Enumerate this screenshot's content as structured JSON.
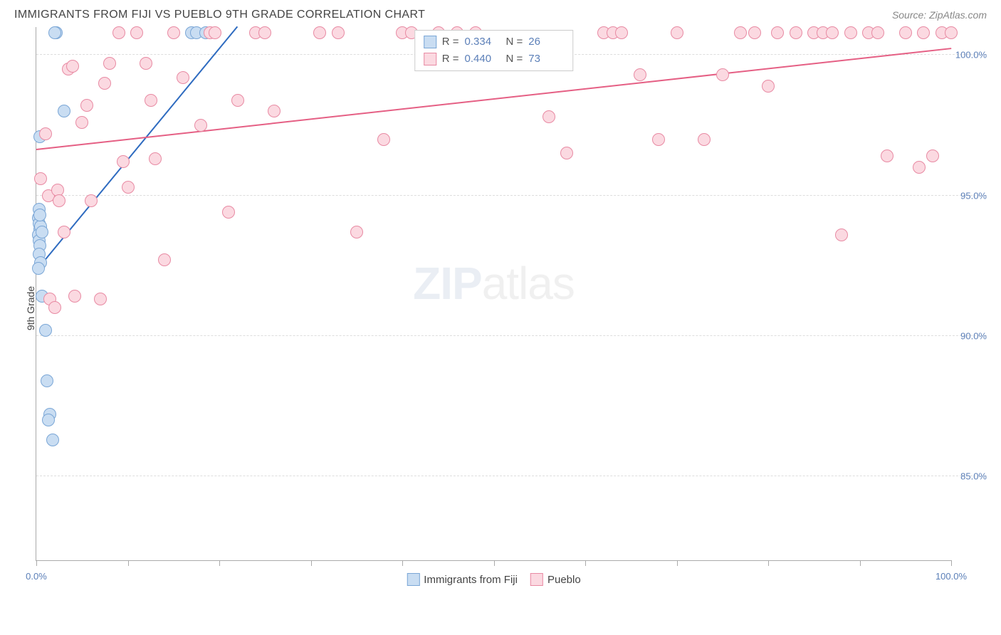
{
  "header": {
    "title": "IMMIGRANTS FROM FIJI VS PUEBLO 9TH GRADE CORRELATION CHART",
    "source": "Source: ZipAtlas.com"
  },
  "chart": {
    "type": "scatter",
    "ylabel": "9th Grade",
    "xlim": [
      0,
      100
    ],
    "ylim": [
      82,
      101
    ],
    "xtick_positions": [
      0,
      10,
      20,
      30,
      40,
      50,
      60,
      70,
      80,
      90,
      100
    ],
    "xtick_labels_shown": {
      "0": "0.0%",
      "100": "100.0%"
    },
    "ytick_positions": [
      85,
      90,
      95,
      100
    ],
    "ytick_labels": [
      "85.0%",
      "90.0%",
      "95.0%",
      "100.0%"
    ],
    "background_color": "#ffffff",
    "grid_color": "#dddddd",
    "grid_style": "dashed",
    "axis_color": "#aaaaaa",
    "tick_label_color": "#5b7fb8",
    "marker_radius": 9,
    "marker_stroke_width": 1.2,
    "series": [
      {
        "name": "Immigrants from Fiji",
        "fill": "#c9ddf2",
        "stroke": "#7aa6d6",
        "R": "0.334",
        "N": "26",
        "trend": {
          "x1": 0,
          "y1": 92.3,
          "x2": 22,
          "y2": 101,
          "color": "#2e6bc0",
          "width": 2
        },
        "points": [
          [
            0.2,
            94.2
          ],
          [
            0.3,
            94.0
          ],
          [
            0.4,
            93.8
          ],
          [
            0.2,
            93.6
          ],
          [
            0.5,
            93.9
          ],
          [
            0.3,
            93.4
          ],
          [
            0.6,
            93.7
          ],
          [
            0.4,
            93.2
          ],
          [
            0.3,
            92.9
          ],
          [
            0.5,
            92.6
          ],
          [
            0.2,
            92.4
          ],
          [
            0.6,
            91.4
          ],
          [
            1.0,
            90.2
          ],
          [
            1.2,
            88.4
          ],
          [
            1.5,
            87.2
          ],
          [
            1.3,
            87.0
          ],
          [
            1.8,
            86.3
          ],
          [
            2.2,
            100.8
          ],
          [
            2.0,
            100.8
          ],
          [
            3.0,
            98.0
          ],
          [
            0.4,
            97.1
          ],
          [
            17.0,
            100.8
          ],
          [
            17.5,
            100.8
          ],
          [
            18.5,
            100.8
          ],
          [
            0.3,
            94.5
          ],
          [
            0.4,
            94.3
          ]
        ]
      },
      {
        "name": "Pueblo",
        "fill": "#fbd9e1",
        "stroke": "#e88aa3",
        "R": "0.440",
        "N": "73",
        "trend": {
          "x1": 0,
          "y1": 96.6,
          "x2": 100,
          "y2": 100.2,
          "color": "#e55f84",
          "width": 2
        },
        "points": [
          [
            0.5,
            95.6
          ],
          [
            1.0,
            97.2
          ],
          [
            1.3,
            95.0
          ],
          [
            1.5,
            91.3
          ],
          [
            2.0,
            91.0
          ],
          [
            2.3,
            95.2
          ],
          [
            2.5,
            94.8
          ],
          [
            3.0,
            93.7
          ],
          [
            3.5,
            99.5
          ],
          [
            4.0,
            99.6
          ],
          [
            4.2,
            91.4
          ],
          [
            5.0,
            97.6
          ],
          [
            5.5,
            98.2
          ],
          [
            6.0,
            94.8
          ],
          [
            7.0,
            91.3
          ],
          [
            7.5,
            99.0
          ],
          [
            8.0,
            99.7
          ],
          [
            9.0,
            100.8
          ],
          [
            9.5,
            96.2
          ],
          [
            10.0,
            95.3
          ],
          [
            11.0,
            100.8
          ],
          [
            12.0,
            99.7
          ],
          [
            12.5,
            98.4
          ],
          [
            13.0,
            96.3
          ],
          [
            14.0,
            92.7
          ],
          [
            15.0,
            100.8
          ],
          [
            16.0,
            99.2
          ],
          [
            18.0,
            97.5
          ],
          [
            19.0,
            100.8
          ],
          [
            19.5,
            100.8
          ],
          [
            21.0,
            94.4
          ],
          [
            22.0,
            98.4
          ],
          [
            24.0,
            100.8
          ],
          [
            25.0,
            100.8
          ],
          [
            26.0,
            98.0
          ],
          [
            31.0,
            100.8
          ],
          [
            33.0,
            100.8
          ],
          [
            35.0,
            93.7
          ],
          [
            38.0,
            97.0
          ],
          [
            40.0,
            100.8
          ],
          [
            41.0,
            100.8
          ],
          [
            44.0,
            100.8
          ],
          [
            46.0,
            100.8
          ],
          [
            48.0,
            100.8
          ],
          [
            56.0,
            97.8
          ],
          [
            58.0,
            96.5
          ],
          [
            62.0,
            100.8
          ],
          [
            63.0,
            100.8
          ],
          [
            64.0,
            100.8
          ],
          [
            66.0,
            99.3
          ],
          [
            68.0,
            97.0
          ],
          [
            70.0,
            100.8
          ],
          [
            73.0,
            97.0
          ],
          [
            75.0,
            99.3
          ],
          [
            77.0,
            100.8
          ],
          [
            78.5,
            100.8
          ],
          [
            80.0,
            98.9
          ],
          [
            81.0,
            100.8
          ],
          [
            83.0,
            100.8
          ],
          [
            85.0,
            100.8
          ],
          [
            86.0,
            100.8
          ],
          [
            87.0,
            100.8
          ],
          [
            88.0,
            93.6
          ],
          [
            89.0,
            100.8
          ],
          [
            91.0,
            100.8
          ],
          [
            92.0,
            100.8
          ],
          [
            93.0,
            96.4
          ],
          [
            95.0,
            100.8
          ],
          [
            96.5,
            96.0
          ],
          [
            97.0,
            100.8
          ],
          [
            98.0,
            96.4
          ],
          [
            99.0,
            100.8
          ],
          [
            100.0,
            100.8
          ]
        ]
      }
    ],
    "watermark": {
      "zip": "ZIP",
      "atlas": "atlas"
    },
    "legend_top": {
      "r_label": "R =",
      "n_label": "N ="
    },
    "legend_bottom_labels": [
      "Immigrants from Fiji",
      "Pueblo"
    ]
  }
}
